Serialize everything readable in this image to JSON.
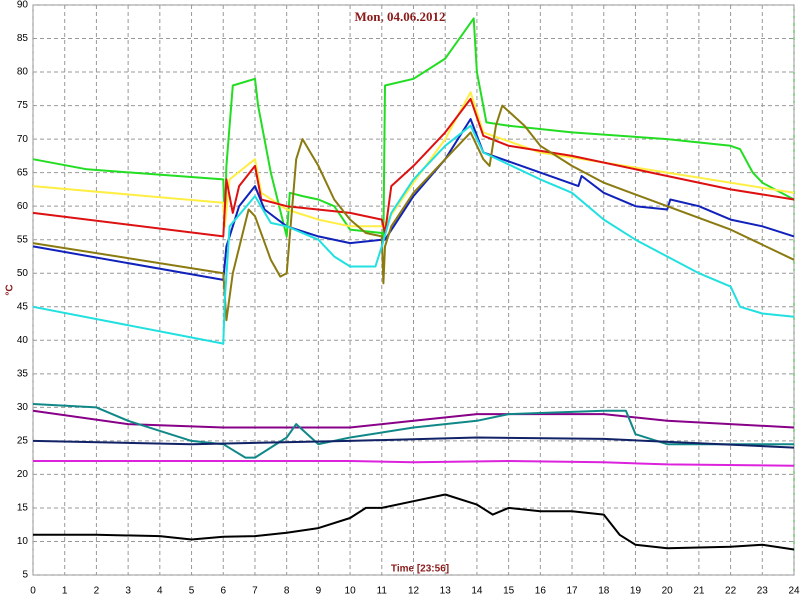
{
  "chart_data": {
    "type": "line",
    "title": "Mon, 04.06.2012",
    "x_label": "Time [23:56]",
    "y_label": "°C",
    "xlim": [
      0,
      24
    ],
    "ylim": [
      5,
      90
    ],
    "xticks": [
      0,
      1,
      2,
      3,
      4,
      5,
      6,
      7,
      8,
      9,
      10,
      11,
      12,
      13,
      14,
      15,
      16,
      17,
      18,
      19,
      20,
      21,
      22,
      23,
      24
    ],
    "yticks": [
      5,
      10,
      15,
      20,
      25,
      30,
      35,
      40,
      45,
      50,
      55,
      60,
      65,
      70,
      75,
      80,
      85,
      90
    ],
    "grid": true,
    "series": [
      {
        "color": "#22dd22",
        "x": [
          0,
          1.7,
          6,
          6.05,
          6.1,
          6.3,
          7,
          7.1,
          7.5,
          8,
          8.1,
          8.5,
          9,
          9.5,
          10,
          11,
          11.05,
          11.1,
          12,
          13,
          13.9,
          14,
          14.3,
          15,
          17,
          20,
          22,
          22.3,
          22.7,
          23,
          24
        ],
        "values": [
          67,
          65.5,
          64,
          57,
          66,
          78,
          79,
          75,
          65,
          55.5,
          62,
          61.5,
          61,
          60,
          56.5,
          56,
          55,
          78,
          79,
          82,
          88,
          80,
          72.5,
          72,
          71,
          70,
          69,
          68.5,
          65,
          63.5,
          61
        ]
      },
      {
        "color": "#ffee44",
        "x": [
          0,
          6,
          6.05,
          6.2,
          7,
          7.2,
          8,
          9,
          10,
          11,
          11.05,
          12,
          13,
          13.8,
          14.2,
          16,
          20,
          24
        ],
        "values": [
          63,
          60.5,
          57,
          64,
          67,
          62,
          59.5,
          58,
          57,
          57,
          57,
          63.5,
          70,
          77,
          71,
          68,
          65,
          62
        ]
      },
      {
        "color": "#dd1111",
        "x": [
          0,
          6,
          6.1,
          6.3,
          6.5,
          7,
          7.2,
          8,
          10,
          11,
          11.1,
          11.3,
          12,
          13,
          13.8,
          14.2,
          15,
          17,
          20,
          22,
          24
        ],
        "values": [
          59,
          55.5,
          64,
          59,
          63,
          66,
          61,
          60,
          59,
          58,
          56,
          63,
          66,
          71,
          76,
          70.5,
          69,
          67.5,
          64.5,
          62.5,
          61
        ]
      },
      {
        "color": "#1122bb",
        "x": [
          0,
          6,
          6.1,
          6.3,
          6.5,
          7,
          7.3,
          8,
          9,
          10,
          11,
          11.1,
          12,
          13,
          13.8,
          14.2,
          16,
          17.2,
          17.3,
          18,
          19,
          20,
          20.1,
          21,
          22,
          23,
          24
        ],
        "values": [
          54,
          49,
          54,
          57,
          60,
          63,
          59.5,
          57,
          55.5,
          54.5,
          55,
          55,
          61.5,
          67,
          73,
          68,
          65,
          63,
          64.5,
          62,
          60,
          59.5,
          61,
          60,
          58,
          57,
          55.5
        ]
      },
      {
        "color": "#8a7a10",
        "x": [
          0,
          6,
          6.1,
          6.3,
          6.8,
          7,
          7.5,
          7.8,
          8,
          8.3,
          8.5,
          9,
          9.5,
          10,
          10.5,
          11,
          11.05,
          11.1,
          11.3,
          12,
          13,
          13.8,
          14.2,
          14.4,
          14.6,
          14.8,
          15.5,
          16,
          17,
          18,
          20,
          22,
          24
        ],
        "values": [
          54.5,
          50,
          43,
          50,
          59.5,
          58.5,
          52,
          49.5,
          50,
          67,
          70,
          66,
          61,
          58,
          56,
          55.5,
          48.5,
          54,
          57,
          62,
          67,
          71,
          67,
          66,
          72,
          75,
          72,
          69,
          66,
          63.5,
          60,
          56.5,
          52
        ]
      },
      {
        "color": "#22e0e0",
        "x": [
          0,
          6,
          6.05,
          6.2,
          7,
          7.5,
          8,
          9,
          9.5,
          10,
          10.8,
          11,
          11.3,
          12,
          13,
          13.8,
          14.2,
          16,
          17,
          18,
          19,
          20,
          21,
          22,
          22.3,
          23,
          24
        ],
        "values": [
          45,
          39.5,
          46,
          57,
          61.5,
          57.5,
          57,
          55,
          52.5,
          51,
          51,
          54,
          59,
          64,
          69,
          72,
          68,
          64,
          62,
          58,
          55,
          52.5,
          50,
          48,
          45,
          44,
          43.5
        ]
      },
      {
        "color": "#880088",
        "x": [
          0,
          3,
          6,
          10,
          12,
          14,
          16,
          18,
          20,
          24
        ],
        "values": [
          29.5,
          27.5,
          27,
          27,
          28,
          29,
          29,
          29,
          28,
          27
        ]
      },
      {
        "color": "#118888",
        "x": [
          0,
          2,
          3,
          5,
          6,
          6.7,
          7,
          8,
          8.3,
          9,
          10,
          12,
          13,
          14,
          15,
          18,
          18.7,
          19,
          20,
          24
        ],
        "values": [
          30.5,
          30,
          28,
          25,
          24.5,
          22.5,
          22.5,
          25.5,
          27.5,
          24.5,
          25.5,
          27,
          27.5,
          28,
          29,
          29.5,
          29.5,
          26,
          24.5,
          24.5
        ]
      },
      {
        "color": "#112266",
        "x": [
          0,
          5,
          10,
          14,
          18,
          24
        ],
        "values": [
          25,
          24.5,
          25,
          25.5,
          25.3,
          24
        ]
      },
      {
        "color": "#dd22dd",
        "x": [
          0,
          10,
          12,
          15,
          18,
          20,
          24
        ],
        "values": [
          22,
          22,
          21.8,
          22,
          21.8,
          21.5,
          21.3
        ]
      },
      {
        "color": "#000000",
        "x": [
          0,
          2,
          4,
          5,
          6,
          7,
          8,
          9,
          10,
          10.5,
          11,
          12,
          13,
          14,
          14.5,
          15,
          16,
          17,
          18,
          18.5,
          19,
          20,
          22,
          23,
          24
        ],
        "values": [
          11,
          11,
          10.8,
          10.3,
          10.7,
          10.8,
          11.3,
          12,
          13.5,
          15,
          15,
          16,
          17,
          15.5,
          14,
          15,
          14.5,
          14.5,
          14,
          11,
          9.5,
          9,
          9.2,
          9.5,
          8.8
        ]
      }
    ]
  }
}
